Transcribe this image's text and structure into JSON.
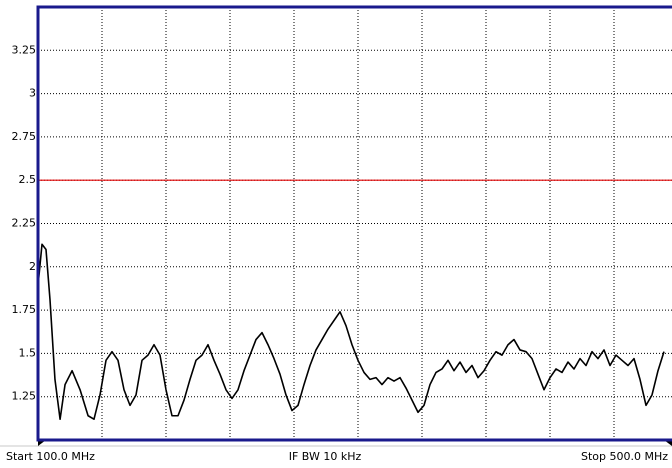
{
  "chart_data": {
    "type": "line",
    "footer_left": "Start 100.0 MHz",
    "footer_center": "IF BW 10 kHz",
    "footer_right": "Stop 500.0 MHz",
    "xlim": [
      100,
      500
    ],
    "xticks": [
      100,
      140,
      180,
      220,
      260,
      300,
      340,
      380,
      420,
      460,
      500
    ],
    "ylim": [
      1,
      3.5
    ],
    "yticks": [
      1.25,
      1.5,
      1.75,
      2,
      2.25,
      2.5,
      2.75,
      3,
      3.25
    ],
    "grid": true,
    "limit_line": 2.5,
    "limit_color": "#e00000",
    "frame_color": "#1a1a8c",
    "x": [
      100,
      102.5,
      105,
      107.5,
      110.6,
      113.8,
      116.9,
      121.3,
      126.3,
      131.3,
      135,
      138.75,
      142.5,
      146.25,
      150,
      153.75,
      157.5,
      161.25,
      165,
      168.75,
      172.5,
      176.25,
      180,
      183.75,
      187.5,
      191.25,
      195,
      198.75,
      202.5,
      206.25,
      210,
      213.75,
      217.5,
      221.25,
      225,
      228.75,
      232.5,
      236.25,
      240,
      243.75,
      247.5,
      251.25,
      255,
      258.75,
      262.5,
      266.25,
      270,
      273.75,
      277.5,
      281.25,
      285,
      288.75,
      292.5,
      296.25,
      300,
      303.75,
      307.5,
      311.25,
      315,
      318.75,
      322.5,
      326.25,
      330,
      333.75,
      337.5,
      341.25,
      345,
      348.75,
      352.5,
      356.25,
      360,
      363.75,
      367.5,
      371.25,
      375,
      378.75,
      382.5,
      386.25,
      390,
      393.75,
      397.5,
      401.25,
      405,
      408.75,
      412.5,
      416.25,
      420,
      423.75,
      427.5,
      431.25,
      435,
      438.75,
      442.5,
      446.25,
      450,
      453.75,
      457.5,
      461.25,
      465,
      468.75,
      472.5,
      476.25,
      480,
      483.75,
      487.5,
      491.25
    ],
    "series": [
      {
        "color": "#000000",
        "values": [
          1.89,
          2.13,
          2.1,
          1.81,
          1.35,
          1.12,
          1.32,
          1.4,
          1.29,
          1.14,
          1.12,
          1.26,
          1.46,
          1.51,
          1.46,
          1.29,
          1.2,
          1.26,
          1.46,
          1.49,
          1.55,
          1.49,
          1.29,
          1.14,
          1.14,
          1.23,
          1.35,
          1.46,
          1.49,
          1.55,
          1.46,
          1.38,
          1.29,
          1.24,
          1.29,
          1.4,
          1.49,
          1.58,
          1.62,
          1.55,
          1.47,
          1.38,
          1.26,
          1.17,
          1.2,
          1.32,
          1.43,
          1.52,
          1.58,
          1.64,
          1.69,
          1.74,
          1.66,
          1.55,
          1.46,
          1.39,
          1.35,
          1.36,
          1.32,
          1.36,
          1.34,
          1.36,
          1.3,
          1.23,
          1.16,
          1.2,
          1.32,
          1.39,
          1.41,
          1.46,
          1.4,
          1.45,
          1.39,
          1.43,
          1.36,
          1.4,
          1.46,
          1.51,
          1.49,
          1.55,
          1.58,
          1.52,
          1.51,
          1.47,
          1.38,
          1.29,
          1.36,
          1.41,
          1.39,
          1.45,
          1.41,
          1.47,
          1.43,
          1.51,
          1.47,
          1.52,
          1.43,
          1.49,
          1.46,
          1.43,
          1.47,
          1.35,
          1.2,
          1.26,
          1.4,
          1.51
        ]
      }
    ]
  }
}
